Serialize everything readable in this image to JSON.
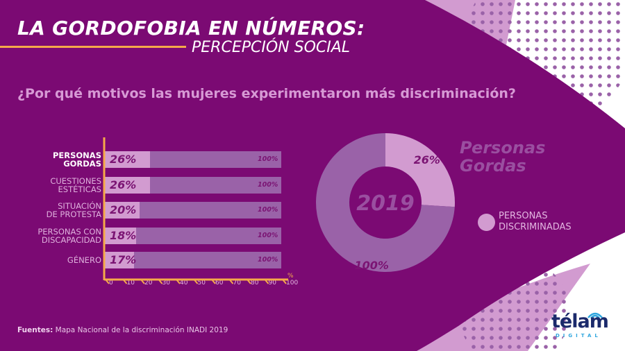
{
  "header": {
    "title": "LA GORDOFOBIA EN NÚMEROS:",
    "subtitle": "PERCEPCIÓN SOCIAL",
    "question": "¿Por qué motivos las mujeres experimentaron más discriminación?"
  },
  "colors": {
    "background": "#7b0a73",
    "bar_light": "#d29bd0",
    "bar_dark": "#9a62a8",
    "axis": "#f5a94a",
    "logo": "#1b2a6b"
  },
  "chart_data": [
    {
      "type": "bar",
      "orientation": "horizontal",
      "categories": [
        {
          "line1": "PERSONAS",
          "line2": "GORDAS",
          "highlight": true
        },
        {
          "line1": "CUESTIONES",
          "line2": "ESTÉTICAS",
          "highlight": false
        },
        {
          "line1": "SITUACIÓN",
          "line2": "DE PROTESTA",
          "highlight": false
        },
        {
          "line1": "PERSONAS CON",
          "line2": "DISCAPACIDAD",
          "highlight": false
        },
        {
          "line1": "GÉNERO",
          "line2": "",
          "highlight": false
        }
      ],
      "values": [
        26,
        26,
        20,
        18,
        17
      ],
      "value_labels": [
        "26%",
        "26%",
        "20%",
        "18%",
        "17%"
      ],
      "total_label": "100%",
      "xlim": [
        0,
        100
      ],
      "xticks": [
        "0",
        "10",
        "20",
        "30",
        "40",
        "50",
        "60",
        "70",
        "80",
        "90",
        "100"
      ],
      "xunit": "%"
    },
    {
      "type": "pie",
      "variant": "donut",
      "center_label": "2019",
      "slices": [
        {
          "label": "26%",
          "value": 26
        },
        {
          "label": "100%",
          "value": 74
        }
      ],
      "watermark": [
        "Personas",
        "Gordas"
      ],
      "legend": {
        "line1": "PERSONAS",
        "line2": "DISCRIMINADAS"
      }
    }
  ],
  "footer": {
    "source_label": "Fuentes:",
    "source_text": " Mapa Nacional de la discriminación INADI 2019"
  },
  "logo": {
    "name": "télam",
    "sub": "DIGITAL"
  }
}
